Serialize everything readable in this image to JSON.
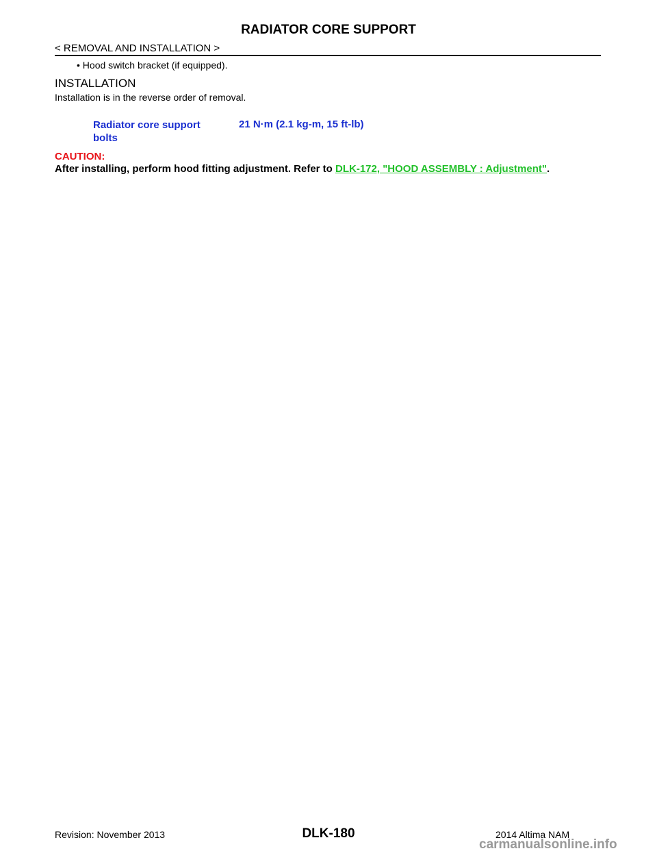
{
  "header": {
    "title": "RADIATOR CORE SUPPORT",
    "section": "< REMOVAL AND INSTALLATION >"
  },
  "body": {
    "bullet": "Hood switch bracket (if equipped).",
    "heading": "INSTALLATION",
    "intro": "Installation is in the reverse order of removal.",
    "torque": {
      "item": "Radiator core support bolts",
      "value": "21 N·m (2.1 kg-m, 15 ft-lb)"
    },
    "caution_label": "CAUTION:",
    "caution_text": "After installing, perform hood fitting adjustment. Refer to",
    "caution_link": "DLK-172, \"HOOD ASSEMBLY : Adjustment\"",
    "caution_end": "."
  },
  "footer": {
    "revision": "Revision: November 2013",
    "page": "DLK-180",
    "model": "2014 Altima NAM",
    "watermark": "carmanualsonline.info"
  }
}
